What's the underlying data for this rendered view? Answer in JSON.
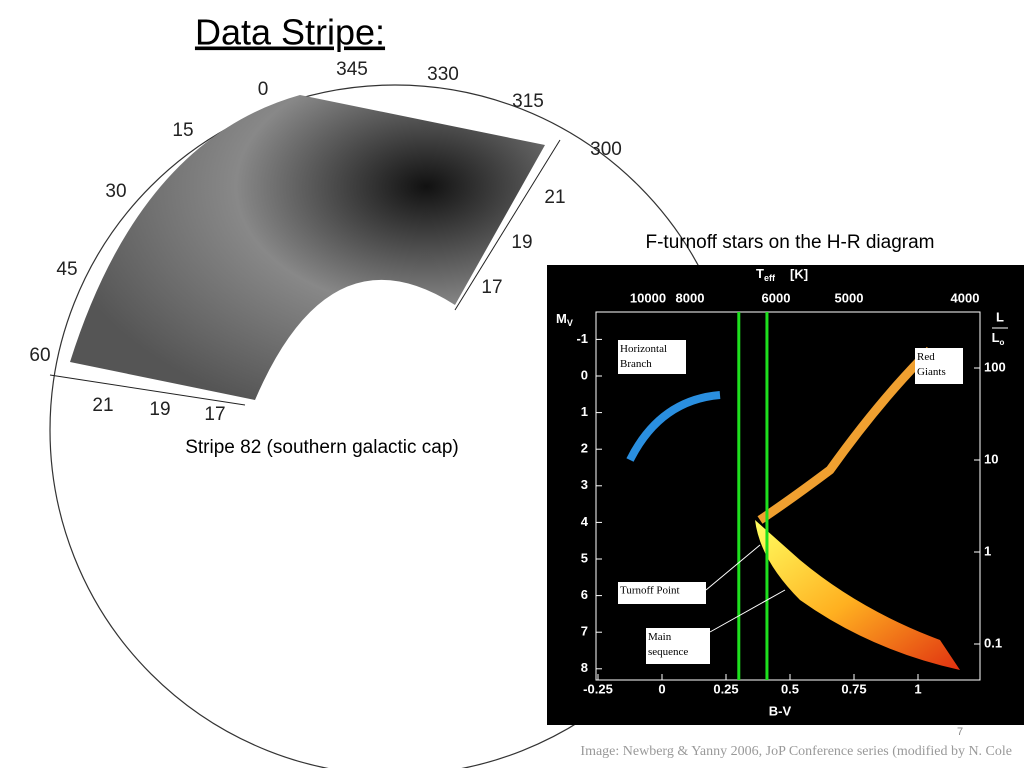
{
  "title": "Data Stripe:",
  "stripe_plot": {
    "outer_labels": [
      "345",
      "330",
      "315",
      "300",
      "0",
      "15",
      "30",
      "45",
      "60"
    ],
    "right_mag_labels": [
      "21",
      "19",
      "17"
    ],
    "bottom_mag_labels": [
      "21",
      "19",
      "17"
    ],
    "caption": "Stripe 82 (southern galactic cap)"
  },
  "hr_diagram": {
    "caption": "F-turnoff stars on the H-R diagram",
    "top_label": "T",
    "top_label_sub": "eff",
    "top_label_unit": "[K]",
    "top_ticks": [
      10000,
      8000,
      6000,
      5000,
      4000
    ],
    "y_label": "M",
    "y_label_sub": "V",
    "yticks": [
      -1,
      0,
      1,
      2,
      3,
      4,
      5,
      6,
      7,
      8
    ],
    "right_label_num": "L",
    "right_label_den": "L",
    "right_label_den_sub": "o",
    "right_ticks": [
      100,
      10,
      1,
      0.1
    ],
    "x_label": "B-V",
    "xticks": [
      -0.25,
      0,
      0.25,
      0.5,
      0.75,
      1
    ],
    "selection_lines": [
      0.3,
      0.41
    ],
    "annotations": [
      "Horizontal Branch",
      "Red Giants",
      "Turnoff Point",
      "Main sequence"
    ]
  },
  "page_number": "7",
  "citation": "Image: Newberg & Yanny  2006,  JoP Conference series (modified by N. Cole"
}
